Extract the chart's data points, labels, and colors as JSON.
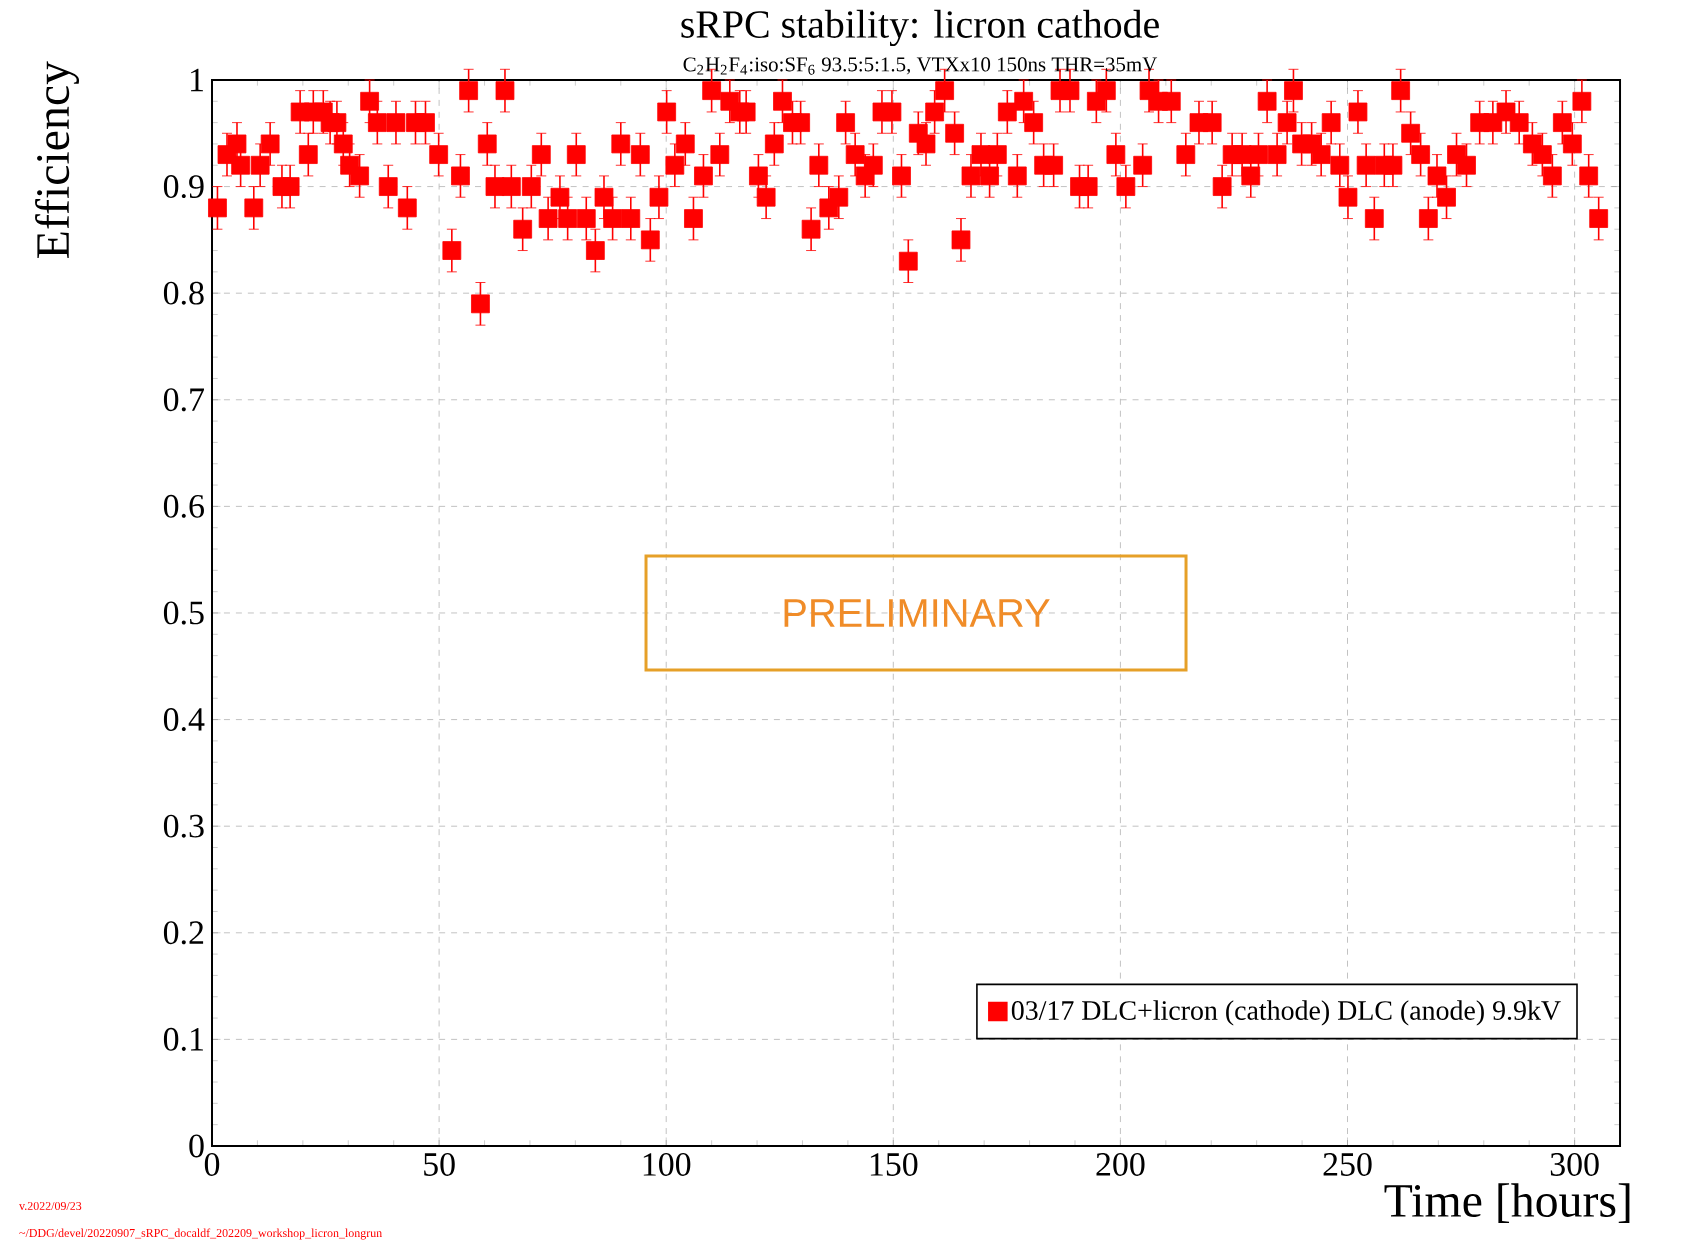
{
  "chart_data": {
    "type": "scatter",
    "title": "sRPC stability: licron cathode",
    "subtitle": "C$_{2}$H$_{2}$F$_{4}$:iso:SF$_{6}$ 93.5:5:1.5, VTXx10 150ns THR=35mV",
    "xlabel": "Time [hours]",
    "ylabel": "Efficiency",
    "annotations": [
      "PRELIMINARY",
      "v.2022/09/23",
      "~/DDG/devel/20220907_sRPC_docaldf_202209_workshop_licron_longrun"
    ],
    "series": [
      {
        "name": "03/17 DLC+licron (cathode) DLC (anode) 9.9kV",
        "color": "#ff0000",
        "x": [
          1.2,
          3.3,
          5.5,
          6.3,
          9.2,
          10.6,
          12.8,
          15.4,
          17.2,
          19.4,
          21.2,
          22.3,
          24.5,
          26,
          27.5,
          28.9,
          30.3,
          32.5,
          34.7,
          36.4,
          38.8,
          40.5,
          43,
          44.8,
          47,
          49.9,
          52.8,
          54.7,
          56.5,
          59.1,
          60.6,
          62.3,
          64.5,
          65.9,
          68.4,
          70.3,
          72.5,
          74,
          76.6,
          78.3,
          80.2,
          82.4,
          84.4,
          86.3,
          88.2,
          90,
          92.2,
          94.3,
          96.5,
          98.4,
          100.1,
          101.9,
          104.2,
          106,
          108.2,
          110,
          111.8,
          114,
          116.2,
          117.6,
          120.3,
          122,
          123.8,
          125.6,
          127.8,
          129.6,
          131.9,
          133.6,
          135.8,
          138,
          139.5,
          141.6,
          143.8,
          145.6,
          147.5,
          149.7,
          151.8,
          153.3,
          155.5,
          157.2,
          159.1,
          161.3,
          163.5,
          164.9,
          167.1,
          169.3,
          171.2,
          172.9,
          175.1,
          177.3,
          178.7,
          180.9,
          183.1,
          185.3,
          186.7,
          188.9,
          191,
          192.9,
          194.7,
          196.9,
          199,
          201.2,
          204.9,
          206.3,
          208.4,
          211.2,
          214.4,
          217.3,
          220.2,
          222.4,
          224.6,
          226.8,
          228.7,
          230.4,
          232.3,
          234.5,
          236.7,
          238.1,
          239.9,
          242.1,
          244.2,
          246.4,
          248.3,
          250.1,
          252.3,
          254.1,
          255.9,
          258.1,
          260,
          261.7,
          263.9,
          266.1,
          267.8,
          269.7,
          271.8,
          274,
          276.2,
          279.1,
          282,
          284.9,
          287.8,
          290.7,
          292.9,
          295.1,
          297.3,
          299.5,
          301.6,
          303.1,
          305.3
        ],
        "values": [
          0.88,
          0.93,
          0.94,
          0.92,
          0.88,
          0.92,
          0.94,
          0.9,
          0.9,
          0.97,
          0.93,
          0.97,
          0.97,
          0.96,
          0.96,
          0.94,
          0.92,
          0.91,
          0.98,
          0.96,
          0.9,
          0.96,
          0.88,
          0.96,
          0.96,
          0.93,
          0.84,
          0.91,
          0.99,
          0.79,
          0.94,
          0.9,
          0.99,
          0.9,
          0.86,
          0.9,
          0.93,
          0.87,
          0.89,
          0.87,
          0.93,
          0.87,
          0.84,
          0.89,
          0.87,
          0.94,
          0.87,
          0.93,
          0.85,
          0.89,
          0.97,
          0.92,
          0.94,
          0.87,
          0.91,
          0.99,
          0.93,
          0.98,
          0.97,
          0.97,
          0.91,
          0.89,
          0.94,
          0.98,
          0.96,
          0.96,
          0.86,
          0.92,
          0.88,
          0.89,
          0.96,
          0.93,
          0.91,
          0.92,
          0.97,
          0.97,
          0.91,
          0.83,
          0.95,
          0.94,
          0.97,
          0.99,
          0.95,
          0.85,
          0.91,
          0.93,
          0.91,
          0.93,
          0.97,
          0.91,
          0.98,
          0.96,
          0.92,
          0.92,
          0.99,
          0.99,
          0.9,
          0.9,
          0.98,
          0.99,
          0.93,
          0.9,
          0.92,
          0.99,
          0.98,
          0.98,
          0.93,
          0.96,
          0.96,
          0.9,
          0.93,
          0.93,
          0.91,
          0.93,
          0.98,
          0.93,
          0.96,
          0.99,
          0.94,
          0.94,
          0.93,
          0.96,
          0.92,
          0.89,
          0.97,
          0.92,
          0.87,
          0.92,
          0.92,
          0.99,
          0.95,
          0.93,
          0.87,
          0.91,
          0.89,
          0.93,
          0.92,
          0.96,
          0.96,
          0.97,
          0.96,
          0.94,
          0.93,
          0.91,
          0.96,
          0.94,
          0.98,
          0.91,
          0.87
        ],
        "errors": [
          0.02,
          0.02,
          0.02,
          0.02,
          0.02,
          0.02,
          0.02,
          0.02,
          0.02,
          0.02,
          0.02,
          0.02,
          0.02,
          0.02,
          0.02,
          0.02,
          0.02,
          0.02,
          0.02,
          0.02,
          0.02,
          0.02,
          0.02,
          0.02,
          0.02,
          0.02,
          0.02,
          0.02,
          0.02,
          0.02,
          0.02,
          0.02,
          0.02,
          0.02,
          0.02,
          0.02,
          0.02,
          0.02,
          0.02,
          0.02,
          0.02,
          0.02,
          0.02,
          0.02,
          0.02,
          0.02,
          0.02,
          0.02,
          0.02,
          0.02,
          0.02,
          0.02,
          0.02,
          0.02,
          0.02,
          0.02,
          0.02,
          0.02,
          0.02,
          0.02,
          0.02,
          0.02,
          0.02,
          0.02,
          0.02,
          0.02,
          0.02,
          0.02,
          0.02,
          0.02,
          0.02,
          0.02,
          0.02,
          0.02,
          0.02,
          0.02,
          0.02,
          0.02,
          0.02,
          0.02,
          0.02,
          0.02,
          0.02,
          0.02,
          0.02,
          0.02,
          0.02,
          0.02,
          0.02,
          0.02,
          0.02,
          0.02,
          0.02,
          0.02,
          0.02,
          0.02,
          0.02,
          0.02,
          0.02,
          0.02,
          0.02,
          0.02,
          0.02,
          0.02,
          0.02,
          0.02,
          0.02,
          0.02,
          0.02,
          0.02,
          0.02,
          0.02,
          0.02,
          0.02,
          0.02,
          0.02,
          0.02,
          0.02,
          0.02,
          0.02,
          0.02,
          0.02,
          0.02,
          0.02,
          0.02,
          0.02,
          0.02,
          0.02,
          0.02,
          0.02,
          0.02,
          0.02,
          0.02,
          0.02,
          0.02,
          0.02,
          0.02,
          0.02,
          0.02,
          0.02,
          0.02,
          0.02,
          0.02,
          0.02,
          0.02,
          0.02,
          0.02,
          0.02,
          0.02
        ]
      }
    ],
    "marker": "square",
    "grid": true,
    "legend": "bottom right",
    "xlim": [
      0,
      310
    ],
    "xticks": [
      0,
      50,
      100,
      150,
      200,
      250,
      300
    ],
    "ylim": [
      0,
      1
    ],
    "yticks": [
      0,
      0.1,
      0.2,
      0.3,
      0.4,
      0.5,
      0.6,
      0.7,
      0.8,
      0.9,
      1
    ]
  }
}
